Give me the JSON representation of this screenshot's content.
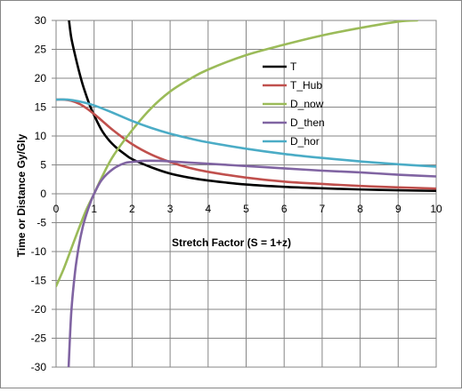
{
  "chart_data": {
    "type": "line",
    "title": "",
    "xlabel": "Stretch Factor (S = 1+z)",
    "ylabel": "Time or Distance Gy/Gly",
    "xlim": [
      0,
      10
    ],
    "ylim": [
      -30,
      30
    ],
    "x_ticks": [
      "0",
      "1",
      "2",
      "3",
      "4",
      "5",
      "6",
      "7",
      "8",
      "9",
      "10"
    ],
    "y_ticks": [
      "30",
      "25",
      "20",
      "15",
      "10",
      "5",
      "0",
      "-5",
      "-10",
      "-15",
      "-20",
      "-25",
      "-30"
    ],
    "grid": true,
    "legend_position": "right",
    "series": [
      {
        "name": "T",
        "color": "#000000",
        "x": [
          0.34,
          0.4,
          0.5,
          0.6,
          0.7,
          0.8,
          0.9,
          1.0,
          1.2,
          1.4,
          1.6,
          1.8,
          2.0,
          2.5,
          3.0,
          3.5,
          4.0,
          5.0,
          6.0,
          7.0,
          8.0,
          9.0,
          10.0
        ],
        "y": [
          30.0,
          27.0,
          24.0,
          21.3,
          18.9,
          16.9,
          15.1,
          13.6,
          11.0,
          9.2,
          7.9,
          6.9,
          6.0,
          4.6,
          3.5,
          2.8,
          2.3,
          1.6,
          1.2,
          0.95,
          0.75,
          0.6,
          0.5
        ]
      },
      {
        "name": "T_Hub",
        "color": "#C0504D",
        "x": [
          0.0,
          0.2,
          0.4,
          0.6,
          0.8,
          1.0,
          1.2,
          1.5,
          2.0,
          2.5,
          3.0,
          3.5,
          4.0,
          5.0,
          6.0,
          7.0,
          8.0,
          9.0,
          10.0
        ],
        "y": [
          16.3,
          16.3,
          16.1,
          15.6,
          14.8,
          13.8,
          12.7,
          11.0,
          8.6,
          6.8,
          5.5,
          4.5,
          3.8,
          2.8,
          2.1,
          1.7,
          1.35,
          1.1,
          0.9
        ]
      },
      {
        "name": "D_now",
        "color": "#9BBB59",
        "x": [
          0.0,
          0.2,
          0.4,
          0.6,
          0.8,
          1.0,
          1.2,
          1.5,
          2.0,
          2.5,
          3.0,
          3.5,
          4.0,
          5.0,
          6.0,
          7.0,
          8.0,
          9.0,
          9.5
        ],
        "y": [
          -16.0,
          -13.0,
          -9.5,
          -6.0,
          -2.7,
          0.0,
          2.8,
          6.5,
          11.0,
          14.8,
          17.7,
          19.8,
          21.5,
          24.0,
          25.8,
          27.4,
          28.7,
          29.8,
          30.0
        ]
      },
      {
        "name": "D_then",
        "color": "#8064A2",
        "x": [
          0.33,
          0.4,
          0.5,
          0.6,
          0.7,
          0.8,
          0.9,
          1.0,
          1.2,
          1.5,
          1.8,
          2.0,
          2.3,
          2.7,
          3.0,
          3.5,
          4.0,
          5.0,
          6.0,
          7.0,
          8.0,
          9.0,
          10.0
        ],
        "y": [
          -30.0,
          -20.5,
          -13.5,
          -9.0,
          -5.8,
          -3.5,
          -1.6,
          0.0,
          2.4,
          4.3,
          5.3,
          5.5,
          5.7,
          5.7,
          5.6,
          5.4,
          5.2,
          4.8,
          4.4,
          4.0,
          3.7,
          3.3,
          3.0
        ]
      },
      {
        "name": "D_hor",
        "color": "#4BACC6",
        "x": [
          0.0,
          0.3,
          0.6,
          1.0,
          1.5,
          2.0,
          2.5,
          3.0,
          3.5,
          4.0,
          5.0,
          6.0,
          7.0,
          8.0,
          9.0,
          10.0
        ],
        "y": [
          16.3,
          16.3,
          16.0,
          15.3,
          14.0,
          12.6,
          11.4,
          10.4,
          9.6,
          8.9,
          7.8,
          6.9,
          6.2,
          5.6,
          5.1,
          4.7
        ]
      }
    ]
  }
}
